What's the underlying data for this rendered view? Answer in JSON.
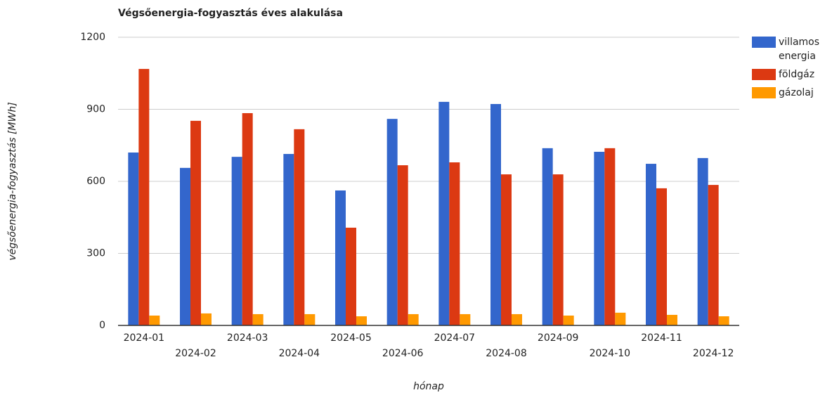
{
  "chart_data": {
    "type": "bar",
    "title": "Végsőenergia-fogyasztás éves alakulása",
    "x_label": "hónap",
    "y_label": "végsőenergia-fogyasztás [MWh]",
    "categories": [
      "2024-01",
      "2024-02",
      "2024-03",
      "2024-04",
      "2024-05",
      "2024-06",
      "2024-07",
      "2024-08",
      "2024-09",
      "2024-10",
      "2024-11",
      "2024-12"
    ],
    "series": [
      {
        "name": "villamos energia",
        "color": "#3366cc",
        "values": [
          720,
          656,
          702,
          714,
          562,
          860,
          931,
          922,
          738,
          723,
          673,
          697
        ]
      },
      {
        "name": "földgáz",
        "color": "#dc3912",
        "values": [
          1068,
          852,
          884,
          817,
          407,
          667,
          679,
          629,
          629,
          738,
          571,
          585
        ]
      },
      {
        "name": "gázolaj",
        "color": "#ff9900",
        "values": [
          41,
          50,
          47,
          47,
          38,
          47,
          47,
          47,
          41,
          53,
          44,
          38
        ]
      }
    ],
    "ylim": [
      0,
      1200
    ],
    "yticks": [
      0,
      300,
      600,
      900,
      1200
    ],
    "grid": true,
    "legend": "right"
  }
}
